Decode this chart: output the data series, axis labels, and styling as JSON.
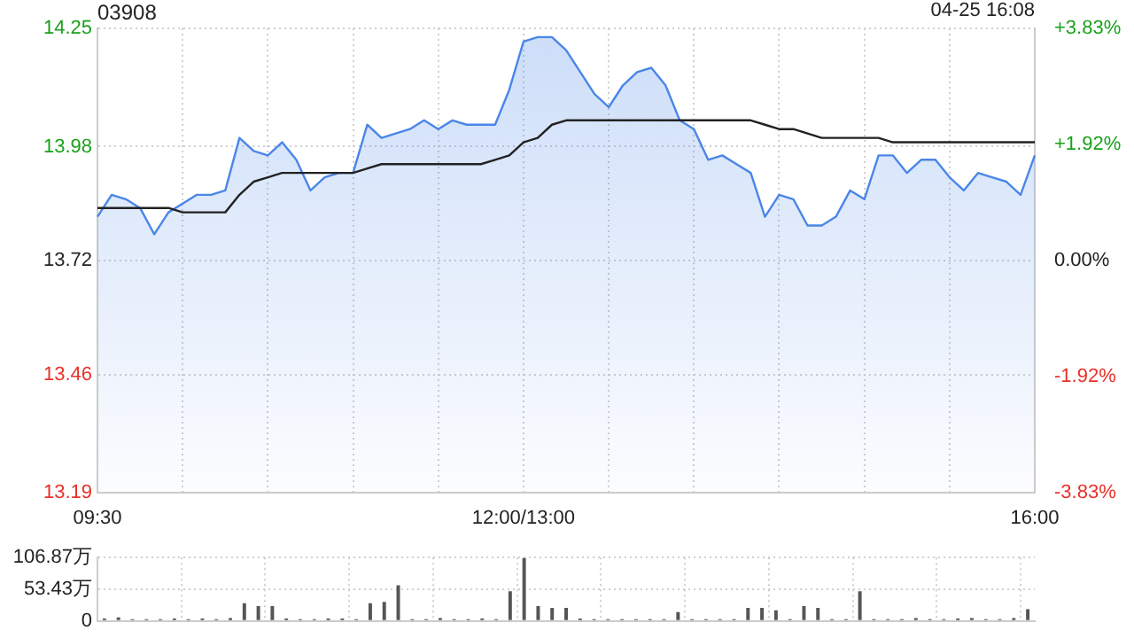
{
  "chart_data": [
    {
      "type": "line",
      "title": "03908",
      "annotations": [
        "04-25 16:08"
      ],
      "categories": [
        "09:30",
        null,
        null,
        null,
        null,
        null,
        null,
        null,
        null,
        null,
        null,
        null,
        null,
        null,
        null,
        null,
        null,
        null,
        null,
        null,
        null,
        null,
        null,
        null,
        null,
        null,
        null,
        null,
        null,
        null,
        "12:00/13:00",
        null,
        null,
        null,
        null,
        null,
        null,
        null,
        null,
        null,
        null,
        null,
        null,
        null,
        null,
        null,
        null,
        null,
        null,
        null,
        null,
        null,
        null,
        null,
        null,
        null,
        null,
        null,
        null,
        null,
        null,
        null,
        null,
        null,
        null,
        null,
        "16:00"
      ],
      "series": [
        {
          "type": "area",
          "color": "#4a86e8",
          "values": [
            13.82,
            13.87,
            13.86,
            13.84,
            13.78,
            13.83,
            13.85,
            13.87,
            13.87,
            13.88,
            14.0,
            13.97,
            13.96,
            13.99,
            13.95,
            13.88,
            13.91,
            13.92,
            13.92,
            14.03,
            14.0,
            14.01,
            14.02,
            14.04,
            14.02,
            14.04,
            14.03,
            14.03,
            14.03,
            14.11,
            14.22,
            14.23,
            14.23,
            14.2,
            14.15,
            14.1,
            14.07,
            14.12,
            14.15,
            14.16,
            14.12,
            14.04,
            14.02,
            13.95,
            13.96,
            13.94,
            13.92,
            13.82,
            13.87,
            13.86,
            13.8,
            13.8,
            13.82,
            13.88,
            13.86,
            13.96,
            13.96,
            13.92,
            13.95,
            13.95,
            13.91,
            13.88,
            13.92,
            13.91,
            13.9,
            13.87,
            13.96
          ]
        },
        {
          "type": "line",
          "color": "#222222",
          "values": [
            13.84,
            13.84,
            13.84,
            13.84,
            13.84,
            13.84,
            13.83,
            13.83,
            13.83,
            13.83,
            13.87,
            13.9,
            13.91,
            13.92,
            13.92,
            13.92,
            13.92,
            13.92,
            13.92,
            13.93,
            13.94,
            13.94,
            13.94,
            13.94,
            13.94,
            13.94,
            13.94,
            13.94,
            13.95,
            13.96,
            13.99,
            14.0,
            14.03,
            14.04,
            14.04,
            14.04,
            14.04,
            14.04,
            14.04,
            14.04,
            14.04,
            14.04,
            14.04,
            14.04,
            14.04,
            14.04,
            14.04,
            14.03,
            14.02,
            14.02,
            14.01,
            14.0,
            14.0,
            14.0,
            14.0,
            14.0,
            13.99,
            13.99,
            13.99,
            13.99,
            13.99,
            13.99,
            13.99,
            13.99,
            13.99,
            13.99,
            13.99
          ]
        }
      ],
      "ylim": [
        13.19,
        14.25
      ],
      "yticks": [
        13.19,
        13.46,
        13.72,
        13.98,
        14.25
      ],
      "y2lim": [
        -3.83,
        3.83
      ],
      "y2ticks": [
        {
          "value": -3.83,
          "label": "-3.83%"
        },
        {
          "value": -1.92,
          "label": "-1.92%"
        },
        {
          "value": 0,
          "label": "0.00%"
        },
        {
          "value": 1.92,
          "label": "+1.92%"
        },
        {
          "value": 3.83,
          "label": "+3.83%"
        }
      ],
      "grid": true,
      "legend": false,
      "marker": "none",
      "line_style": "solid"
    },
    {
      "type": "bar",
      "color": "#555555",
      "categories": [
        null,
        null,
        null,
        null,
        null,
        null,
        null,
        null,
        null,
        null,
        null,
        null,
        null,
        null,
        null,
        null,
        null,
        null,
        null,
        null,
        null,
        null,
        null,
        null,
        null,
        null,
        null,
        null,
        null,
        null,
        null,
        null,
        null,
        null,
        null,
        null,
        null,
        null,
        null,
        null,
        null,
        null,
        null,
        null,
        null,
        null,
        null,
        null,
        null,
        null,
        null,
        null,
        null,
        null,
        null,
        null,
        null,
        null,
        null,
        null,
        null,
        null,
        null,
        null,
        null,
        null,
        null
      ],
      "values": [
        4,
        6,
        3,
        3,
        3,
        4,
        3,
        4,
        3,
        5,
        30,
        25,
        25,
        4,
        3,
        3,
        4,
        4,
        3,
        30,
        32,
        60,
        3,
        3,
        5,
        3,
        3,
        4,
        3,
        50,
        106,
        25,
        22,
        22,
        4,
        3,
        3,
        3,
        3,
        3,
        3,
        15,
        3,
        3,
        3,
        3,
        22,
        22,
        18,
        3,
        25,
        22,
        3,
        3,
        50,
        3,
        3,
        3,
        5,
        3,
        3,
        4,
        5,
        3,
        3,
        5,
        20
      ],
      "ylim": [
        0,
        106.87
      ],
      "yticks": [
        0,
        {
          "value": 53.43,
          "label": "53.43万"
        },
        {
          "value": 106.87,
          "label": "106.87万"
        }
      ],
      "grid": true,
      "legend": false,
      "tick_labels": "y"
    }
  ]
}
